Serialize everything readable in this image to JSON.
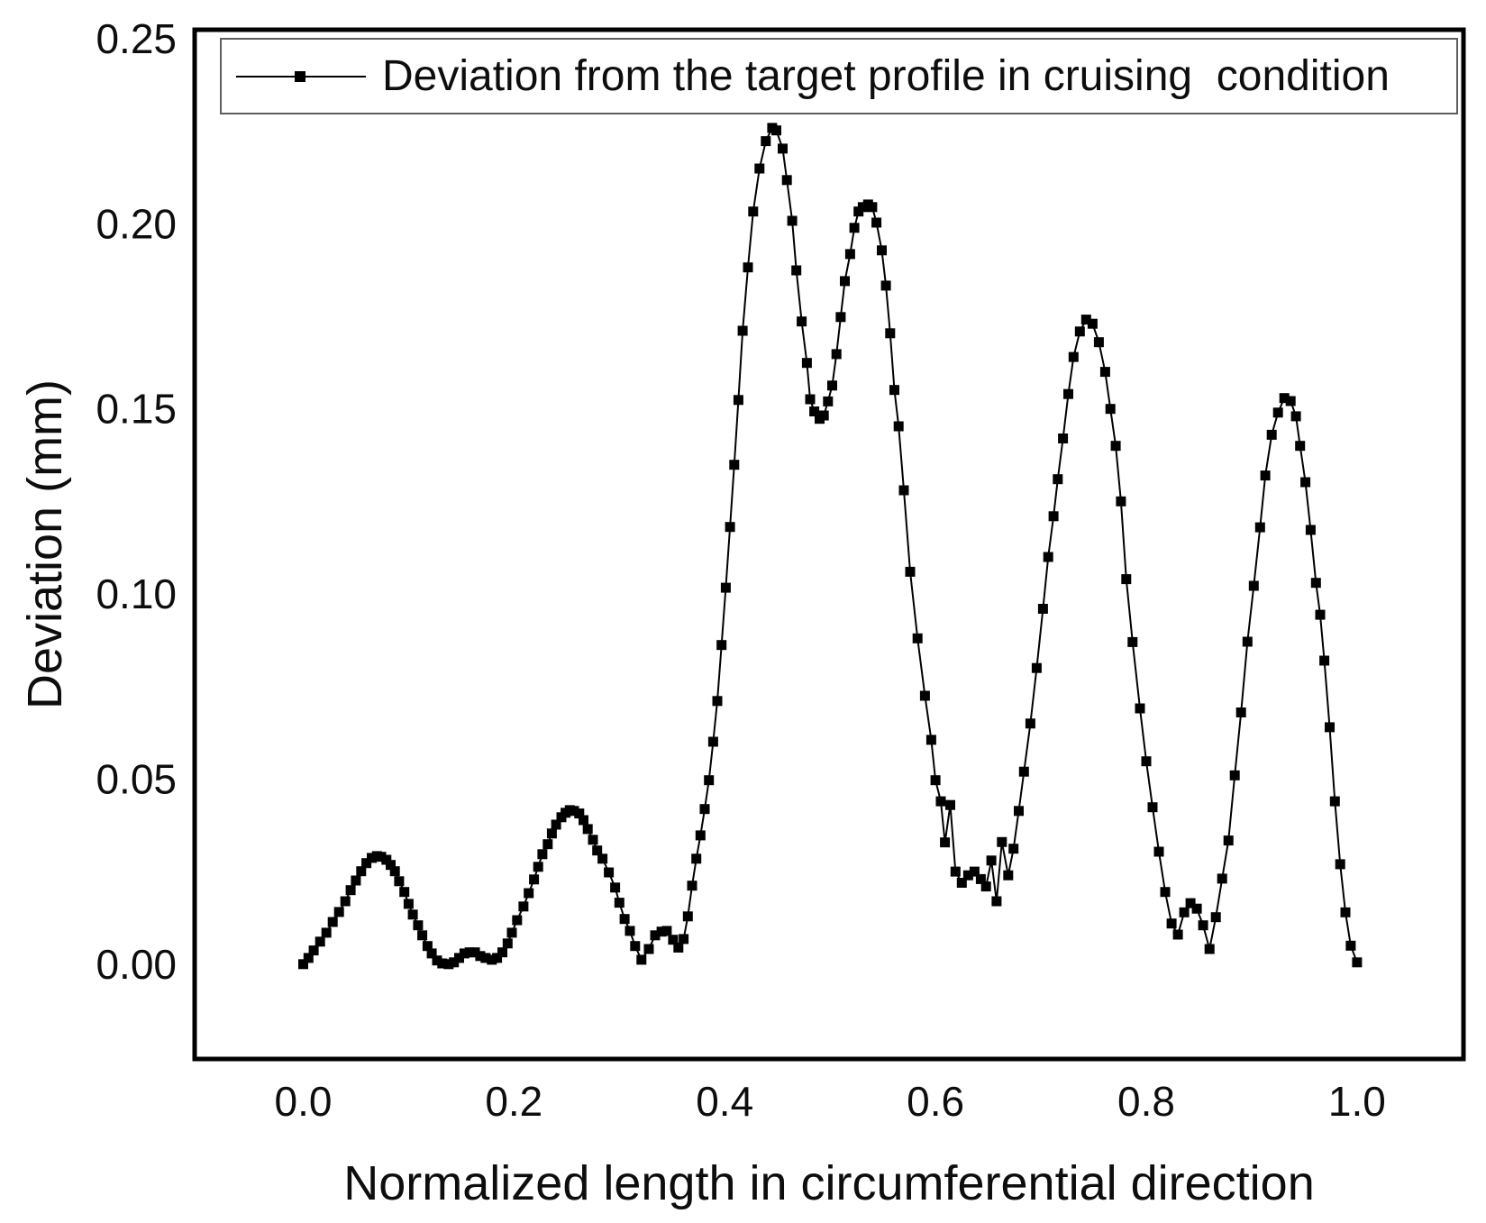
{
  "figure": {
    "background": "#ffffff"
  },
  "colors": {
    "series": "#000000",
    "frame": "#000000",
    "text": "#0d0d0d",
    "legend_border": "#5f5f5f"
  },
  "legend": {
    "label": "Deviation from the target profile in cruising  condition",
    "marker": "black-square-on-line"
  },
  "chart_data": {
    "type": "line",
    "title": "",
    "xlabel": "Normalized length in circumferential direction",
    "ylabel": "Deviation (mm)",
    "xlim": [
      -0.103,
      1.101
    ],
    "ylim": [
      -0.0256,
      0.2524
    ],
    "grid": false,
    "legend_position": "top",
    "x_ticks": [
      0.0,
      0.2,
      0.4,
      0.6,
      0.8,
      1.0
    ],
    "x_tick_labels": [
      "0.0",
      "0.2",
      "0.4",
      "0.6",
      "0.8",
      "1.0"
    ],
    "y_ticks": [
      0.0,
      0.05,
      0.1,
      0.15,
      0.2,
      0.25
    ],
    "y_tick_labels": [
      "0.00",
      "0.05",
      "0.10",
      "0.15",
      "0.20",
      "0.25"
    ],
    "series": [
      {
        "name": "Deviation from the target profile in cruising  condition",
        "color": "#000000",
        "marker": "square",
        "marker_size": 11,
        "line_width": 2,
        "points": [
          [
            0.0,
            0.0
          ],
          [
            0.005,
            0.0017
          ],
          [
            0.01,
            0.0037
          ],
          [
            0.016,
            0.0061
          ],
          [
            0.022,
            0.0085
          ],
          [
            0.028,
            0.0114
          ],
          [
            0.034,
            0.0141
          ],
          [
            0.04,
            0.017
          ],
          [
            0.045,
            0.02
          ],
          [
            0.05,
            0.0226
          ],
          [
            0.055,
            0.0251
          ],
          [
            0.06,
            0.0273
          ],
          [
            0.065,
            0.0287
          ],
          [
            0.07,
            0.0292
          ],
          [
            0.074,
            0.029
          ],
          [
            0.079,
            0.0282
          ],
          [
            0.083,
            0.0268
          ],
          [
            0.087,
            0.0251
          ],
          [
            0.091,
            0.0224
          ],
          [
            0.096,
            0.0195
          ],
          [
            0.1,
            0.0163
          ],
          [
            0.104,
            0.0134
          ],
          [
            0.109,
            0.0105
          ],
          [
            0.113,
            0.0078
          ],
          [
            0.118,
            0.0049
          ],
          [
            0.122,
            0.0029
          ],
          [
            0.127,
            0.001
          ],
          [
            0.132,
            0.0002
          ],
          [
            0.138,
            0.0
          ],
          [
            0.143,
            0.0005
          ],
          [
            0.148,
            0.0017
          ],
          [
            0.153,
            0.0029
          ],
          [
            0.158,
            0.0032
          ],
          [
            0.163,
            0.0032
          ],
          [
            0.168,
            0.0022
          ],
          [
            0.173,
            0.0017
          ],
          [
            0.179,
            0.0012
          ],
          [
            0.184,
            0.0017
          ],
          [
            0.189,
            0.0032
          ],
          [
            0.194,
            0.0056
          ],
          [
            0.198,
            0.0085
          ],
          [
            0.203,
            0.0119
          ],
          [
            0.209,
            0.0156
          ],
          [
            0.214,
            0.0192
          ],
          [
            0.219,
            0.0229
          ],
          [
            0.223,
            0.0263
          ],
          [
            0.227,
            0.0297
          ],
          [
            0.232,
            0.0324
          ],
          [
            0.236,
            0.0353
          ],
          [
            0.24,
            0.0377
          ],
          [
            0.245,
            0.0397
          ],
          [
            0.249,
            0.0409
          ],
          [
            0.253,
            0.0416
          ],
          [
            0.257,
            0.0414
          ],
          [
            0.262,
            0.0407
          ],
          [
            0.266,
            0.0389
          ],
          [
            0.27,
            0.0365
          ],
          [
            0.275,
            0.0336
          ],
          [
            0.279,
            0.0307
          ],
          [
            0.284,
            0.0285
          ],
          [
            0.29,
            0.0248
          ],
          [
            0.296,
            0.0207
          ],
          [
            0.3,
            0.0166
          ],
          [
            0.305,
            0.0122
          ],
          [
            0.31,
            0.009
          ],
          [
            0.315,
            0.0049
          ],
          [
            0.321,
            0.0012
          ],
          [
            0.328,
            0.0041
          ],
          [
            0.334,
            0.0078
          ],
          [
            0.34,
            0.0088
          ],
          [
            0.345,
            0.009
          ],
          [
            0.351,
            0.0066
          ],
          [
            0.356,
            0.0045
          ],
          [
            0.361,
            0.0068
          ],
          [
            0.365,
            0.0129
          ],
          [
            0.369,
            0.0212
          ],
          [
            0.373,
            0.0285
          ],
          [
            0.377,
            0.0348
          ],
          [
            0.381,
            0.0419
          ],
          [
            0.385,
            0.0497
          ],
          [
            0.389,
            0.0601
          ],
          [
            0.393,
            0.0711
          ],
          [
            0.397,
            0.0862
          ],
          [
            0.401,
            0.1017
          ],
          [
            0.405,
            0.1181
          ],
          [
            0.409,
            0.1349
          ],
          [
            0.413,
            0.1524
          ],
          [
            0.417,
            0.1711
          ],
          [
            0.422,
            0.1882
          ],
          [
            0.427,
            0.2033
          ],
          [
            0.433,
            0.2149
          ],
          [
            0.439,
            0.2223
          ],
          [
            0.445,
            0.2259
          ],
          [
            0.449,
            0.2252
          ],
          [
            0.455,
            0.2203
          ],
          [
            0.459,
            0.2118
          ],
          [
            0.464,
            0.2008
          ],
          [
            0.468,
            0.1874
          ],
          [
            0.473,
            0.1736
          ],
          [
            0.478,
            0.1624
          ],
          [
            0.481,
            0.1526
          ],
          [
            0.485,
            0.1493
          ],
          [
            0.49,
            0.1473
          ],
          [
            0.494,
            0.1482
          ],
          [
            0.498,
            0.152
          ],
          [
            0.502,
            0.1563
          ],
          [
            0.506,
            0.1648
          ],
          [
            0.51,
            0.1748
          ],
          [
            0.514,
            0.1845
          ],
          [
            0.519,
            0.1918
          ],
          [
            0.523,
            0.1989
          ],
          [
            0.527,
            0.2033
          ],
          [
            0.531,
            0.2045
          ],
          [
            0.536,
            0.2052
          ],
          [
            0.54,
            0.2045
          ],
          [
            0.544,
            0.2003
          ],
          [
            0.549,
            0.1928
          ],
          [
            0.553,
            0.1833
          ],
          [
            0.557,
            0.1704
          ],
          [
            0.561,
            0.1551
          ],
          [
            0.565,
            0.1453
          ],
          [
            0.57,
            0.128
          ],
          [
            0.576,
            0.106
          ],
          [
            0.583,
            0.088
          ],
          [
            0.59,
            0.0725
          ],
          [
            0.596,
            0.0606
          ],
          [
            0.6,
            0.0497
          ],
          [
            0.605,
            0.044
          ],
          [
            0.609,
            0.0329
          ],
          [
            0.614,
            0.043
          ],
          [
            0.619,
            0.025
          ],
          [
            0.625,
            0.022
          ],
          [
            0.631,
            0.024
          ],
          [
            0.637,
            0.025
          ],
          [
            0.643,
            0.023
          ],
          [
            0.648,
            0.021
          ],
          [
            0.653,
            0.028
          ],
          [
            0.658,
            0.017
          ],
          [
            0.663,
            0.033
          ],
          [
            0.669,
            0.024
          ],
          [
            0.674,
            0.0312
          ],
          [
            0.679,
            0.0414
          ],
          [
            0.684,
            0.052
          ],
          [
            0.69,
            0.065
          ],
          [
            0.696,
            0.08
          ],
          [
            0.702,
            0.096
          ],
          [
            0.707,
            0.11
          ],
          [
            0.712,
            0.121
          ],
          [
            0.716,
            0.131
          ],
          [
            0.721,
            0.142
          ],
          [
            0.726,
            0.154
          ],
          [
            0.731,
            0.164
          ],
          [
            0.737,
            0.1709
          ],
          [
            0.743,
            0.1741
          ],
          [
            0.749,
            0.173
          ],
          [
            0.755,
            0.168
          ],
          [
            0.761,
            0.16
          ],
          [
            0.766,
            0.15
          ],
          [
            0.771,
            0.14
          ],
          [
            0.776,
            0.125
          ],
          [
            0.781,
            0.104
          ],
          [
            0.787,
            0.087
          ],
          [
            0.794,
            0.0691
          ],
          [
            0.8,
            0.0548
          ],
          [
            0.806,
            0.0424
          ],
          [
            0.812,
            0.0304
          ],
          [
            0.818,
            0.0195
          ],
          [
            0.824,
            0.011
          ],
          [
            0.83,
            0.008
          ],
          [
            0.836,
            0.014
          ],
          [
            0.842,
            0.0165
          ],
          [
            0.848,
            0.015
          ],
          [
            0.854,
            0.0105
          ],
          [
            0.86,
            0.0041
          ],
          [
            0.866,
            0.0127
          ],
          [
            0.872,
            0.0231
          ],
          [
            0.878,
            0.0334
          ],
          [
            0.884,
            0.051
          ],
          [
            0.89,
            0.068
          ],
          [
            0.896,
            0.0871
          ],
          [
            0.902,
            0.1022
          ],
          [
            0.908,
            0.118
          ],
          [
            0.913,
            0.132
          ],
          [
            0.919,
            0.143
          ],
          [
            0.925,
            0.149
          ],
          [
            0.931,
            0.1529
          ],
          [
            0.937,
            0.1521
          ],
          [
            0.942,
            0.148
          ],
          [
            0.946,
            0.14
          ],
          [
            0.951,
            0.1302
          ],
          [
            0.956,
            0.1173
          ],
          [
            0.961,
            0.103
          ],
          [
            0.965,
            0.0944
          ],
          [
            0.969,
            0.082
          ],
          [
            0.974,
            0.064
          ],
          [
            0.979,
            0.044
          ],
          [
            0.984,
            0.027
          ],
          [
            0.989,
            0.014
          ],
          [
            0.994,
            0.005
          ],
          [
            1.0,
            0.0005
          ]
        ]
      }
    ]
  }
}
